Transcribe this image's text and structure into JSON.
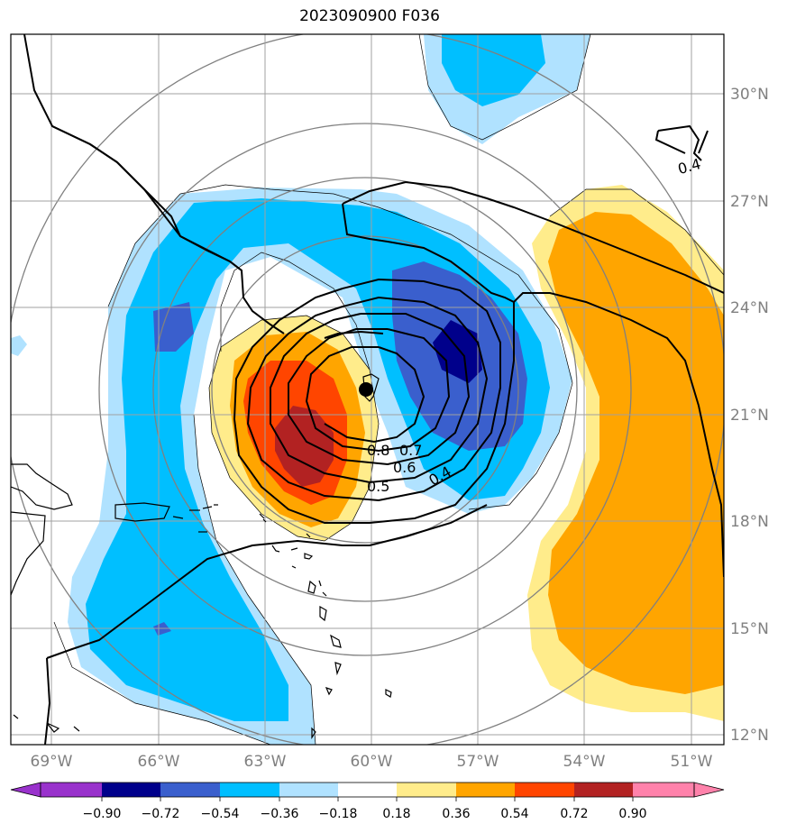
{
  "title": "2023090900 F036",
  "lon_labels": [
    "69°W",
    "66°W",
    "63°W",
    "60°W",
    "57°W",
    "54°W",
    "51°W"
  ],
  "lat_labels": [
    "30°N",
    "27°N",
    "24°N",
    "21°N",
    "18°N",
    "15°N",
    "12°N"
  ],
  "contour_labels": [
    "0.8",
    "0.7",
    "0.6",
    "0.5",
    "0.4",
    "0.4"
  ],
  "colorbar": {
    "ticks": [
      "−0.90",
      "−0.72",
      "−0.54",
      "−0.36",
      "−0.18",
      "0.18",
      "0.36",
      "0.54",
      "0.72",
      "0.90"
    ],
    "colors": [
      "#9932cc",
      "#00008b",
      "#3a5fcd",
      "#00bfff",
      "#b0e2ff",
      "#ffffff",
      "#ffec8b",
      "#ffa500",
      "#ff4500",
      "#b22222",
      "#ff82ab"
    ]
  }
}
